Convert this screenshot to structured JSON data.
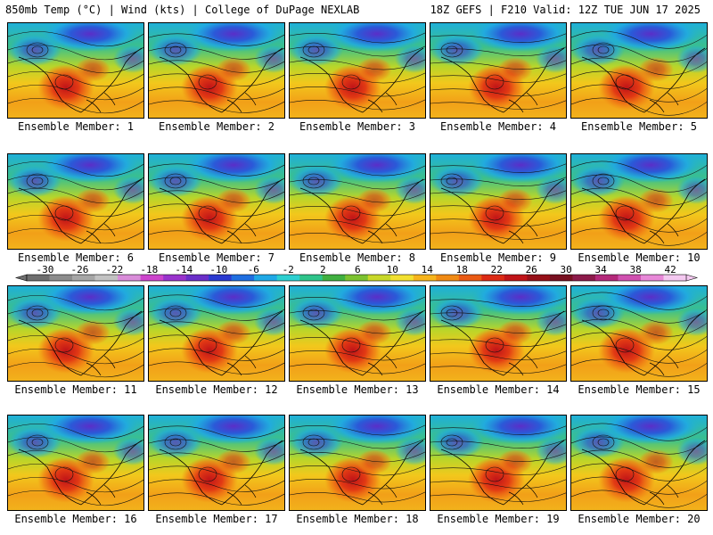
{
  "header": {
    "left_title": "850mb Temp (°C) | Wind (kts) | College of DuPage NEXLAB",
    "right_title": "18Z GEFS | F210 Valid: 12Z TUE JUN 17 2025"
  },
  "members": [
    "Ensemble Member: 1",
    "Ensemble Member: 2",
    "Ensemble Member: 3",
    "Ensemble Member: 4",
    "Ensemble Member: 5",
    "Ensemble Member: 6",
    "Ensemble Member: 7",
    "Ensemble Member: 8",
    "Ensemble Member: 9",
    "Ensemble Member: 10",
    "Ensemble Member: 11",
    "Ensemble Member: 12",
    "Ensemble Member: 13",
    "Ensemble Member: 14",
    "Ensemble Member: 15",
    "Ensemble Member: 16",
    "Ensemble Member: 17",
    "Ensemble Member: 18",
    "Ensemble Member: 19",
    "Ensemble Member: 20"
  ],
  "colorbar": {
    "ticks": [
      "-30",
      "-26",
      "-22",
      "-18",
      "-14",
      "-10",
      "-6",
      "-2",
      "2",
      "6",
      "10",
      "14",
      "18",
      "22",
      "26",
      "30",
      "34",
      "38",
      "42"
    ],
    "colors": [
      "#6e6e6e",
      "#8c8c8c",
      "#a6a6a6",
      "#c2c2c2",
      "#d98cd9",
      "#cc44cc",
      "#9933cc",
      "#6a2ec8",
      "#2a3ad0",
      "#1f6ee0",
      "#1fa8e6",
      "#2ccfd0",
      "#2ec48a",
      "#40b040",
      "#7cc230",
      "#c8d82a",
      "#f2e030",
      "#f6b41c",
      "#f08a14",
      "#ea5a14",
      "#dc2a14",
      "#c01418",
      "#961018",
      "#781020",
      "#8c1a4a",
      "#b4287a",
      "#d050b0",
      "#e888d8",
      "#f4c8f0"
    ]
  }
}
